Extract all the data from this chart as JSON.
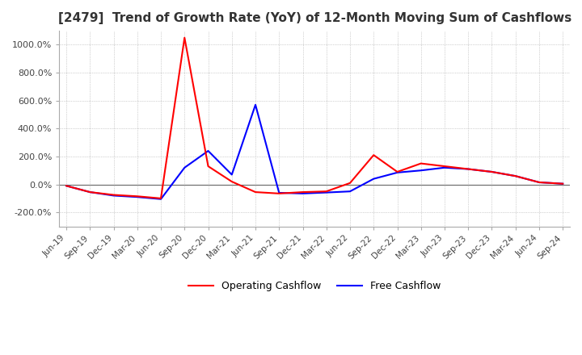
{
  "title": "[2479]  Trend of Growth Rate (YoY) of 12-Month Moving Sum of Cashflows",
  "title_color": "#333333",
  "title_fontsize": 11,
  "background_color": "#ffffff",
  "grid_color": "#aaaaaa",
  "ylim": [
    -300,
    1100
  ],
  "yticks": [
    -200,
    0,
    200,
    400,
    600,
    800,
    1000
  ],
  "legend_labels": [
    "Operating Cashflow",
    "Free Cashflow"
  ],
  "legend_colors": [
    "#ff0000",
    "#0000ff"
  ],
  "x_labels": [
    "Jun-19",
    "Sep-19",
    "Dec-19",
    "Mar-20",
    "Jun-20",
    "Sep-20",
    "Dec-20",
    "Mar-21",
    "Jun-21",
    "Sep-21",
    "Dec-21",
    "Mar-22",
    "Jun-22",
    "Sep-22",
    "Dec-22",
    "Mar-23",
    "Jun-23",
    "Sep-23",
    "Dec-23",
    "Mar-24",
    "Jun-24",
    "Sep-24"
  ],
  "operating_cashflow": [
    -10,
    -55,
    -75,
    -85,
    -100,
    1050,
    130,
    20,
    -55,
    -65,
    -55,
    -50,
    10,
    210,
    90,
    150,
    130,
    110,
    90,
    60,
    15,
    5
  ],
  "free_cashflow": [
    -10,
    -55,
    -80,
    -90,
    -105,
    120,
    240,
    70,
    570,
    -60,
    -65,
    -58,
    -50,
    40,
    85,
    100,
    120,
    110,
    90,
    60,
    15,
    5
  ],
  "op_color": "#ff0000",
  "fc_color": "#0000ff"
}
